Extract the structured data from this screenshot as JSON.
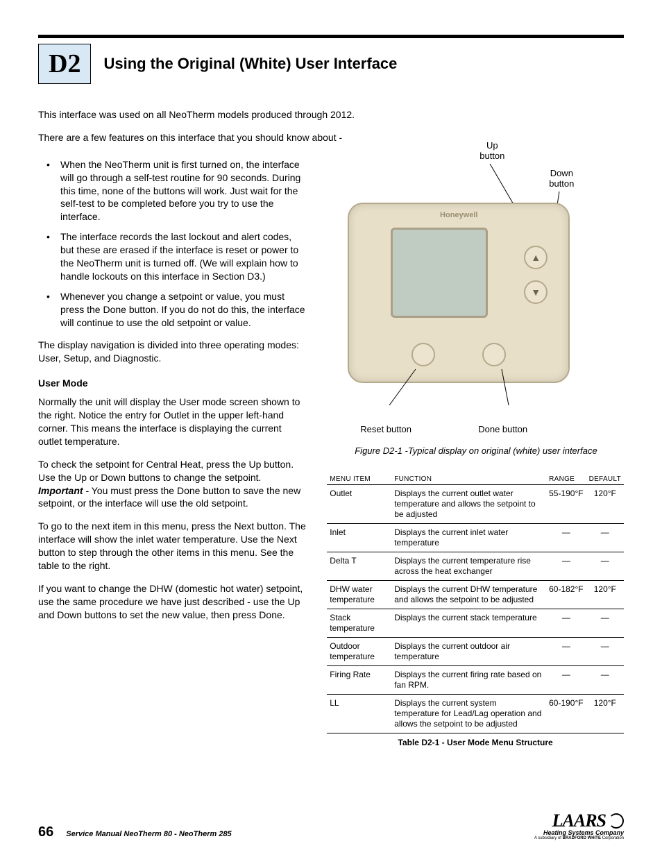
{
  "colors": {
    "badge_bg": "#d9e8f5",
    "device_bg": "#e8dfc8",
    "device_border": "#b5a98c",
    "screen_bg": "#c0ccc1",
    "rule": "#000000"
  },
  "header": {
    "section_code": "D2",
    "section_title": "Using the Original (White) User Interface"
  },
  "intro": {
    "p1": "This interface was used on all NeoTherm models produced through 2012.",
    "p2": "There are a few features on this interface that you should know about -"
  },
  "bullets": [
    "When the NeoTherm unit is first turned on, the interface will go through a self-test routine for 90 seconds.  During this time, none of the buttons will work.  Just wait for the self-test to be completed before you try to use the interface.",
    "The interface records the last lockout and alert codes, but these are erased if the interface is reset or power to the NeoTherm unit is turned off.  (We will explain how to handle lockouts on this interface in Section D3.)",
    "Whenever you change a setpoint or value, you must press the Done button.  If you do not do this, the interface will continue to use the old setpoint or value."
  ],
  "after_bullets": "The display navigation is divided into three operating modes: User, Setup, and Diagnostic.",
  "user_mode": {
    "heading": "User Mode",
    "p1": "Normally the unit will display the User mode screen shown to the right.  Notice the entry for Outlet in the upper left-hand corner.  This means the interface is displaying the current outlet temperature.",
    "p2a": "To check the setpoint for Central Heat, press the Up button.  Use the Up or Down buttons to change the setpoint. ",
    "p2_important": "Important",
    "p2b": " - You must press the Done button to save the new setpoint, or the interface will use the old setpoint.",
    "p3": "To go to the next item in this menu, press the Next button.  The interface will show the inlet water temperature.  Use the Next button to step through the other items in this menu.  See the table to the right.",
    "p4": "If you want to change the DHW (domestic hot water) setpoint, use the same procedure we have just described - use the Up and Down buttons to set the new value, then press Done."
  },
  "figure": {
    "brand": "Honeywell",
    "label_up": "Up\nbutton",
    "label_down": "Down\nbutton",
    "label_reset": "Reset button",
    "label_done": "Done button",
    "caption": "Figure D2-1 -Typical display on original (white) user interface"
  },
  "table": {
    "headers": [
      "MENU ITEM",
      "FUNCTION",
      "RANGE",
      "DEFAULT"
    ],
    "rows": [
      {
        "item": "Outlet",
        "func": "Displays the current outlet water temperature and allows the setpoint to be adjusted",
        "range": "55-190°F",
        "def": "120°F"
      },
      {
        "item": "Inlet",
        "func": "Displays the current inlet water temperature",
        "range": "—",
        "def": "—"
      },
      {
        "item": "Delta T",
        "func": "Displays the current temperature rise across the heat exchanger",
        "range": "—",
        "def": "—"
      },
      {
        "item": "DHW water temperature",
        "func": "Displays the current DHW temperature and allows the setpoint to be adjusted",
        "range": "60-182°F",
        "def": "120°F"
      },
      {
        "item": "Stack temperature",
        "func": "Displays the current stack temperature",
        "range": "—",
        "def": "—"
      },
      {
        "item": "Outdoor temperature",
        "func": "Displays the current outdoor air temperature",
        "range": "—",
        "def": "—"
      },
      {
        "item": "Firing Rate",
        "func": "Displays the current firing rate based on fan RPM.",
        "range": "—",
        "def": "—"
      },
      {
        "item": "LL",
        "func": "Displays the current system temperature for Lead/Lag operation and allows the setpoint to be adjusted",
        "range": "60-190°F",
        "def": "120°F"
      }
    ],
    "caption": "Table D2-1 - User Mode Menu Structure"
  },
  "footer": {
    "page_num": "66",
    "manual": "Service Manual NeoTherm 80 - NeoTherm 285",
    "logo_main": "LAARS",
    "logo_sub1": "Heating Systems Company",
    "logo_sub2_a": "A subsidiary of ",
    "logo_sub2_b": "BRADFORD WHITE",
    "logo_sub2_c": " Corporation"
  }
}
